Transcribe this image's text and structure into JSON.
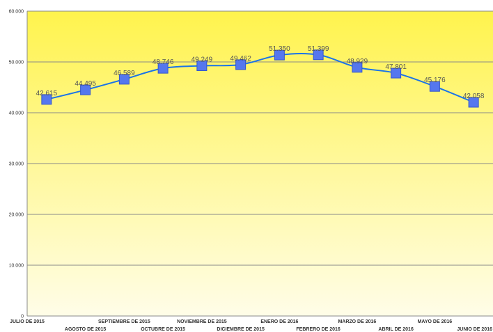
{
  "chart_data": {
    "type": "line",
    "categories": [
      "JULIO DE 2015",
      "AGOSTO DE 2015",
      "SEPTIEMBRE DE 2015",
      "OCTUBRE DE 2015",
      "NOVIEMBRE DE 2015",
      "DICIEMBRE DE 2015",
      "ENERO DE 2016",
      "FEBRERO DE 2016",
      "MARZO DE 2016",
      "ABRIL DE 2016",
      "MAYO DE 2016",
      "JUNIO DE 2016"
    ],
    "values": [
      42615,
      44495,
      46589,
      48746,
      49249,
      49462,
      51350,
      51399,
      48929,
      47801,
      45176,
      42058
    ],
    "data_labels": [
      "42.615",
      "44.495",
      "46.589",
      "48.746",
      "49.249",
      "49.462",
      "51.350",
      "51.399",
      "48.929",
      "47.801",
      "45.176",
      "42.058"
    ],
    "ylim": [
      0,
      60000
    ],
    "yticks": [
      0,
      10000,
      20000,
      30000,
      40000,
      50000,
      60000
    ],
    "ytick_labels": [
      "0",
      "10.000",
      "20.000",
      "30.000",
      "40.000",
      "50.000",
      "60.000"
    ],
    "grid": true,
    "smooth": true,
    "title": "",
    "xlabel": "",
    "ylabel": ""
  },
  "colors": {
    "line": "#1a73e8",
    "marker": "#5577ee",
    "marker_stroke": "#3355cc",
    "grid": "#8a8a8a",
    "bg_top": "#fff34d",
    "bg_bottom": "#fffde8"
  }
}
